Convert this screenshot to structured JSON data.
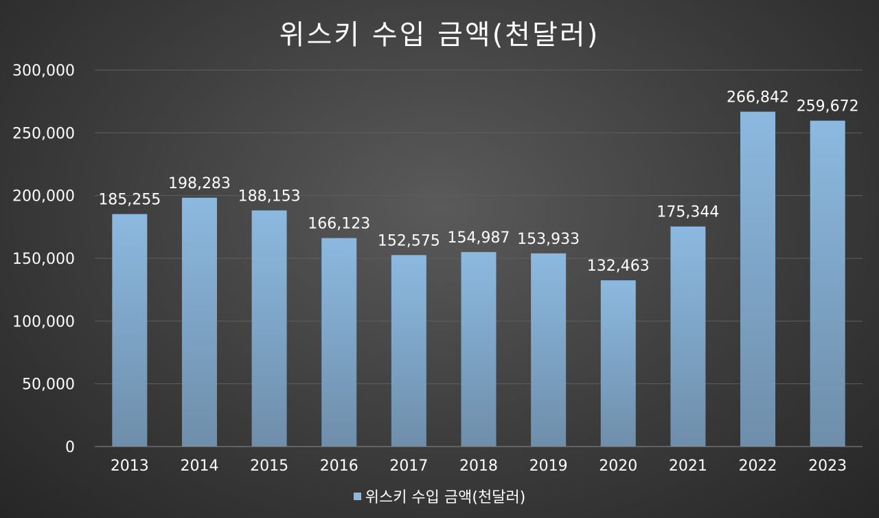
{
  "chart_data": {
    "type": "bar",
    "title": "위스키 수입 금액(천달러)",
    "categories": [
      "2013",
      "2014",
      "2015",
      "2016",
      "2017",
      "2018",
      "2019",
      "2020",
      "2021",
      "2022",
      "2023"
    ],
    "series": [
      {
        "name": "위스키 수입 금액(천달러)",
        "values": [
          185255,
          198283,
          188153,
          166123,
          152575,
          154987,
          153933,
          132463,
          175344,
          266842,
          259672
        ]
      }
    ],
    "data_labels": [
      "185,255",
      "198,283",
      "188,153",
      "166,123",
      "152,575",
      "154,987",
      "153,933",
      "132,463",
      "175,344",
      "266,842",
      "259,672"
    ],
    "y_ticks": [
      0,
      50000,
      100000,
      150000,
      200000,
      250000,
      300000
    ],
    "y_tick_labels": [
      "0",
      "50,000",
      "100,000",
      "150,000",
      "200,000",
      "250,000",
      "300,000"
    ],
    "ylim": [
      0,
      300000
    ],
    "grid": true,
    "legend_position": "bottom",
    "colors": {
      "bar_top": "#8cb9e0",
      "bar_bottom": "#6e8eaa",
      "gridline": "#5f5f5f",
      "text": "#ffffff",
      "background_center": "#5a5a5a",
      "background_edge": "#262626"
    }
  }
}
